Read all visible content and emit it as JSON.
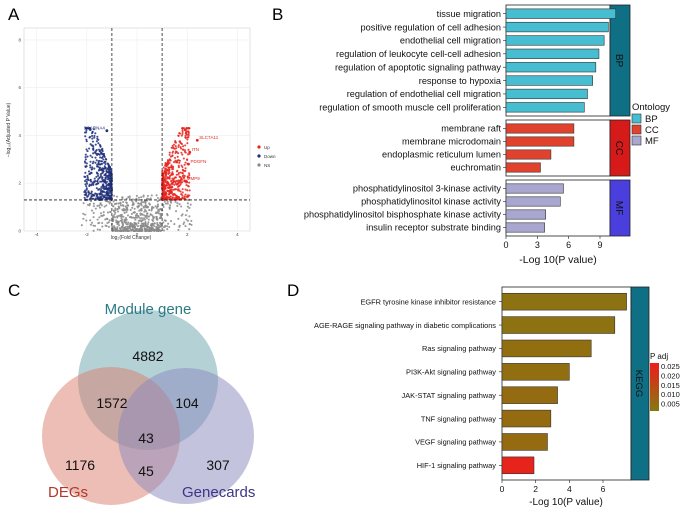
{
  "panel_labels": [
    "A",
    "B",
    "C",
    "D"
  ],
  "chart_data": [
    {
      "panel": "A",
      "type": "scatter",
      "title": "",
      "xlabel": "log₂(Fold Change)",
      "ylabel": "−log₁₀(Adjusted P Value)",
      "xlim": [
        -4.5,
        4.5
      ],
      "ylim": [
        0,
        8.5
      ],
      "xticks": [
        "-4",
        "-2",
        "0",
        "2",
        "4"
      ],
      "yticks": [
        "0",
        "2",
        "4",
        "6",
        "8"
      ],
      "fc_cutoffs": [
        -1,
        1
      ],
      "p_cutoff": 1.3,
      "legend": [
        {
          "name": "Up",
          "color": "#e8251f"
        },
        {
          "name": "Down",
          "color": "#1f2f7a"
        },
        {
          "name": "NS",
          "color": "#8a8a8a"
        }
      ],
      "annotations": [
        {
          "label": "SCARNA4",
          "x": -1.2,
          "y": 4.2,
          "group": "Down"
        },
        {
          "label": "SLC7A11",
          "x": 2.4,
          "y": 3.8,
          "group": "Up"
        },
        {
          "label": "ITN",
          "x": 2.1,
          "y": 3.3,
          "group": "Up"
        },
        {
          "label": "PDGFN",
          "x": 2.05,
          "y": 2.8,
          "group": "Up"
        },
        {
          "label": "MMP9",
          "x": 1.9,
          "y": 2.1,
          "group": "Up"
        }
      ]
    },
    {
      "panel": "B",
      "type": "bar",
      "orientation": "horizontal",
      "xlabel": "-Log 10(P value)",
      "xticks": [
        "0",
        "3",
        "6",
        "9"
      ],
      "xlim": [
        0,
        11
      ],
      "legend_title": "Ontology",
      "legend": [
        {
          "name": "BP",
          "color": "#46bdd0"
        },
        {
          "name": "CC",
          "color": "#e0422e"
        },
        {
          "name": "MF",
          "color": "#a9a6cf"
        }
      ],
      "groups": [
        {
          "name": "BP",
          "strip_color": "#0e6f85",
          "categories": [
            "tissue migration",
            "positive regulation of cell adhesion",
            "endothelial cell migration",
            "regulation of leukocyte cell-cell adhesion",
            "regulation of apoptotic signaling pathway",
            "response to hypoxia",
            "regulation of endothelial cell migration",
            "regulation of smooth muscle cell proliferation"
          ],
          "values": [
            10.5,
            9.8,
            9.4,
            8.9,
            8.6,
            8.3,
            7.8,
            7.5
          ]
        },
        {
          "name": "CC",
          "strip_color": "#d61a1a",
          "categories": [
            "membrane raft",
            "membrane microdomain",
            "endoplasmic reticulum lumen",
            "euchromatin"
          ],
          "values": [
            6.5,
            6.5,
            4.3,
            3.3
          ]
        },
        {
          "name": "MF",
          "strip_color": "#4a3fdc",
          "categories": [
            "phosphatidylinositol 3-kinase activity",
            "phosphatidylinositol kinase activity",
            "phosphatidylinositol bisphosphate kinase activity",
            "insulin receptor substrate binding"
          ],
          "values": [
            5.5,
            5.2,
            3.8,
            3.7
          ]
        }
      ]
    },
    {
      "panel": "C",
      "type": "venn",
      "sets": [
        {
          "name": "Module gene",
          "color": "#6aa3ad",
          "label_color": "#2a7b86"
        },
        {
          "name": "DEGs",
          "color": "#d97e6c",
          "label_color": "#b2382c"
        },
        {
          "name": "Genecards",
          "color": "#8a87bd",
          "label_color": "#3c3588"
        }
      ],
      "regions": [
        {
          "sets": [
            "Module gene"
          ],
          "value": 4882
        },
        {
          "sets": [
            "Module gene",
            "DEGs"
          ],
          "value": 1572
        },
        {
          "sets": [
            "Module gene",
            "Genecards"
          ],
          "value": 104
        },
        {
          "sets": [
            "Module gene",
            "DEGs",
            "Genecards"
          ],
          "value": 43
        },
        {
          "sets": [
            "DEGs"
          ],
          "value": 1176
        },
        {
          "sets": [
            "DEGs",
            "Genecards"
          ],
          "value": 45
        },
        {
          "sets": [
            "Genecards"
          ],
          "value": 307
        }
      ]
    },
    {
      "panel": "D",
      "type": "bar",
      "orientation": "horizontal",
      "xlabel": "-Log 10(P value)",
      "xticks": [
        "0",
        "2",
        "4",
        "6"
      ],
      "xlim": [
        0,
        7.6
      ],
      "strip_label": "KEGG",
      "strip_color": "#0e6f85",
      "legend_title": "P adj",
      "legend_ticks": [
        "0.025",
        "0.020",
        "0.015",
        "0.010",
        "0.005"
      ],
      "color_scale": {
        "low": "#847a10",
        "high": "#ee1c1c",
        "min": 0.002,
        "max": 0.027
      },
      "categories": [
        "EGFR tyrosine kinase inhibitor resistance",
        "AGE-RAGE signaling pathway in diabetic complications",
        "Ras signaling pathway",
        "PI3K-Akt signaling pathway",
        "JAK-STAT signaling pathway",
        "TNF signaling pathway",
        "VEGF signaling pathway",
        "HIF-1 signaling pathway"
      ],
      "values": [
        7.4,
        6.7,
        5.3,
        4.0,
        3.3,
        2.9,
        2.7,
        1.9
      ],
      "padj": [
        0.004,
        0.004,
        0.005,
        0.005,
        0.006,
        0.006,
        0.006,
        0.025
      ]
    }
  ]
}
